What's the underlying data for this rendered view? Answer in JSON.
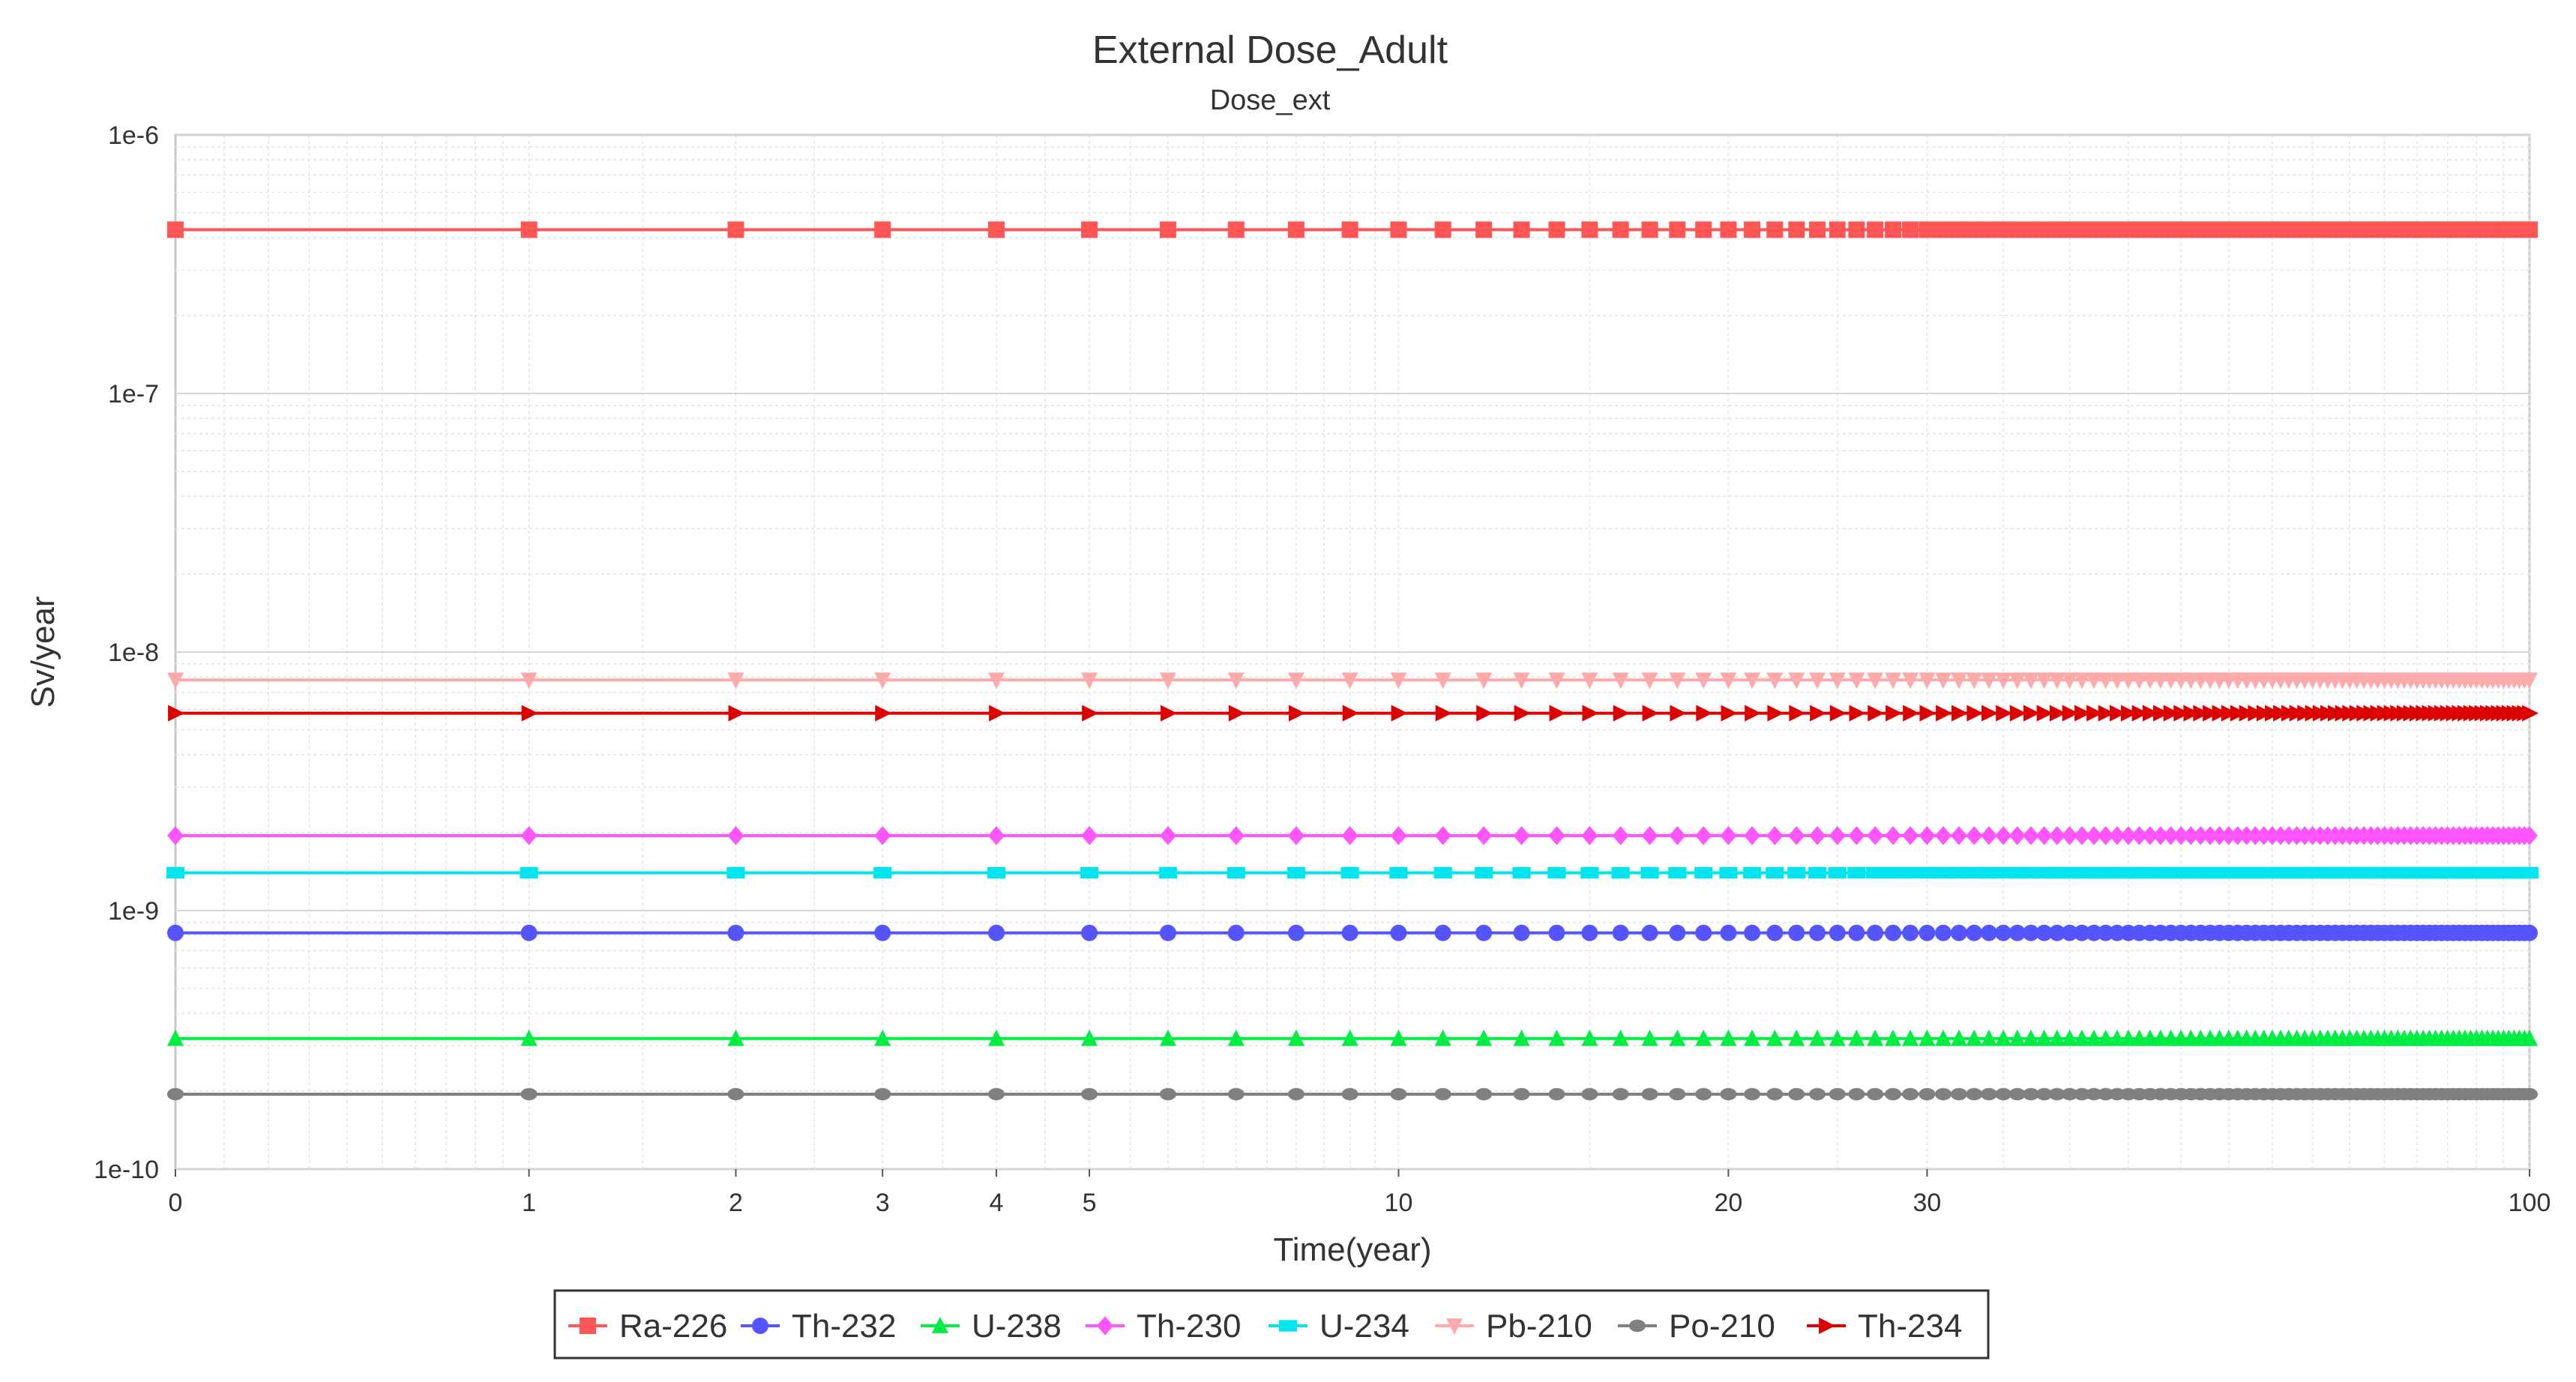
{
  "chart_data": {
    "type": "line",
    "title": "External Dose_Adult",
    "subtitle": "Dose_ext",
    "xlabel": "Time(year)",
    "ylabel": "Sv/year",
    "x_scale": "log1p",
    "y_scale": "log",
    "xlim": [
      0,
      100
    ],
    "ylim": [
      1e-10,
      1e-06
    ],
    "x_ticks": [
      0,
      1,
      2,
      3,
      4,
      5,
      10,
      20,
      30,
      100
    ],
    "x_tick_labels": [
      "0",
      "1",
      "2",
      "3",
      "4",
      "5",
      "10",
      "20",
      "30",
      "100"
    ],
    "y_ticks": [
      1e-10,
      1e-09,
      1e-08,
      1e-07,
      1e-06
    ],
    "y_tick_labels": [
      "1e-10",
      "1e-9",
      "1e-8",
      "1e-7",
      "1e-6"
    ],
    "grid": true,
    "legend_position": "bottom",
    "series": [
      {
        "name": "Ra-226",
        "color": "#ff5555",
        "marker": "square",
        "value": 4.3e-07
      },
      {
        "name": "Th-232",
        "color": "#5555ff",
        "marker": "circle",
        "value": 8.2e-10
      },
      {
        "name": "U-238",
        "color": "#00ee44",
        "marker": "triangle-up",
        "value": 3.2e-10
      },
      {
        "name": "Th-230",
        "color": "#ff55ff",
        "marker": "diamond",
        "value": 1.95e-09
      },
      {
        "name": "U-234",
        "color": "#00e5ee",
        "marker": "rect",
        "value": 1.4e-09
      },
      {
        "name": "Pb-210",
        "color": "#ffaaaa",
        "marker": "triangle-down",
        "value": 7.8e-09
      },
      {
        "name": "Po-210",
        "color": "#808080",
        "marker": "ellipse",
        "value": 1.95e-10
      },
      {
        "name": "Th-234",
        "color": "#dd0000",
        "marker": "triangle-right",
        "value": 5.8e-09
      }
    ]
  }
}
